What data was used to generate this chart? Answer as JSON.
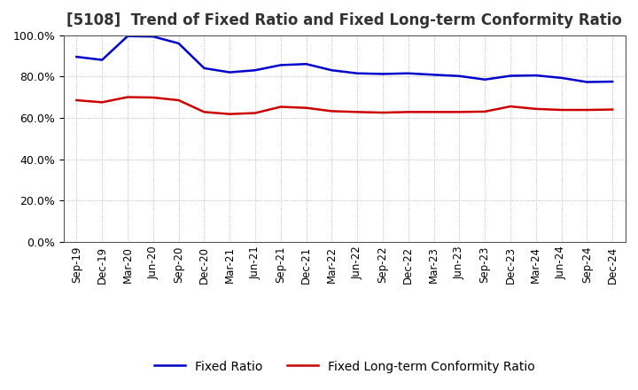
{
  "title": "[5108]  Trend of Fixed Ratio and Fixed Long-term Conformity Ratio",
  "title_fontsize": 12,
  "x_labels": [
    "Sep-19",
    "Dec-19",
    "Mar-20",
    "Jun-20",
    "Sep-20",
    "Dec-20",
    "Mar-21",
    "Jun-21",
    "Sep-21",
    "Dec-21",
    "Mar-22",
    "Jun-22",
    "Sep-22",
    "Dec-22",
    "Mar-23",
    "Jun-23",
    "Sep-23",
    "Dec-23",
    "Mar-24",
    "Jun-24",
    "Sep-24",
    "Dec-24"
  ],
  "fixed_ratio": [
    0.895,
    0.88,
    0.995,
    0.993,
    0.96,
    0.84,
    0.82,
    0.83,
    0.855,
    0.86,
    0.83,
    0.815,
    0.812,
    0.815,
    0.808,
    0.802,
    0.785,
    0.803,
    0.805,
    0.793,
    0.773,
    0.775
  ],
  "fixed_lt_ratio": [
    0.685,
    0.675,
    0.7,
    0.698,
    0.685,
    0.628,
    0.618,
    0.623,
    0.653,
    0.648,
    0.632,
    0.628,
    0.625,
    0.628,
    0.628,
    0.628,
    0.63,
    0.655,
    0.643,
    0.638,
    0.638,
    0.64
  ],
  "fixed_ratio_color": "#0000CC",
  "fixed_lt_ratio_color": "#CC0000",
  "ylim": [
    0.0,
    1.0
  ],
  "yticks": [
    0.0,
    0.2,
    0.4,
    0.6,
    0.8,
    1.0
  ],
  "grid_color": "#aaaaaa",
  "background_color": "#ffffff",
  "legend_fixed": "Fixed Ratio",
  "legend_lt": "Fixed Long-term Conformity Ratio"
}
